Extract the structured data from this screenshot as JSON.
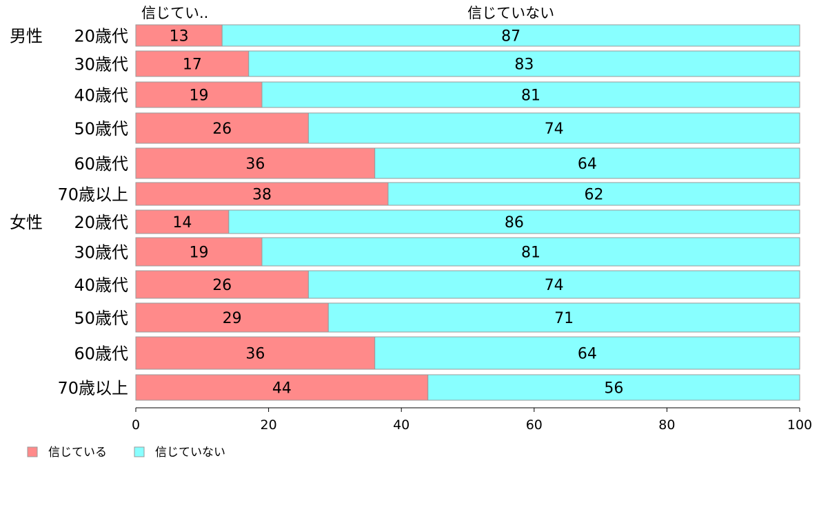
{
  "chart_data": {
    "type": "bar",
    "orientation": "horizontal",
    "stacked": true,
    "column_headers": [
      "信じてい..",
      "信じていない"
    ],
    "group_labels": [
      "男性",
      "女性"
    ],
    "categories": [
      "20歳代",
      "30歳代",
      "40歳代",
      "50歳代",
      "60歳代",
      "70歳以上",
      "20歳代",
      "30歳代",
      "40歳代",
      "50歳代",
      "60歳代",
      "70歳以上"
    ],
    "series": [
      {
        "name": "信じている",
        "color": "#ff8a8a",
        "values": [
          13,
          17,
          19,
          26,
          36,
          38,
          14,
          19,
          26,
          29,
          36,
          44
        ]
      },
      {
        "name": "信じていない",
        "color": "#88ffff",
        "values": [
          87,
          83,
          81,
          74,
          64,
          62,
          86,
          81,
          74,
          71,
          64,
          56
        ]
      }
    ],
    "xlim": [
      0,
      100
    ],
    "xticks": [
      "0",
      "20",
      "40",
      "60",
      "80",
      "100"
    ],
    "grid": false,
    "legend_position": "bottom-left"
  }
}
